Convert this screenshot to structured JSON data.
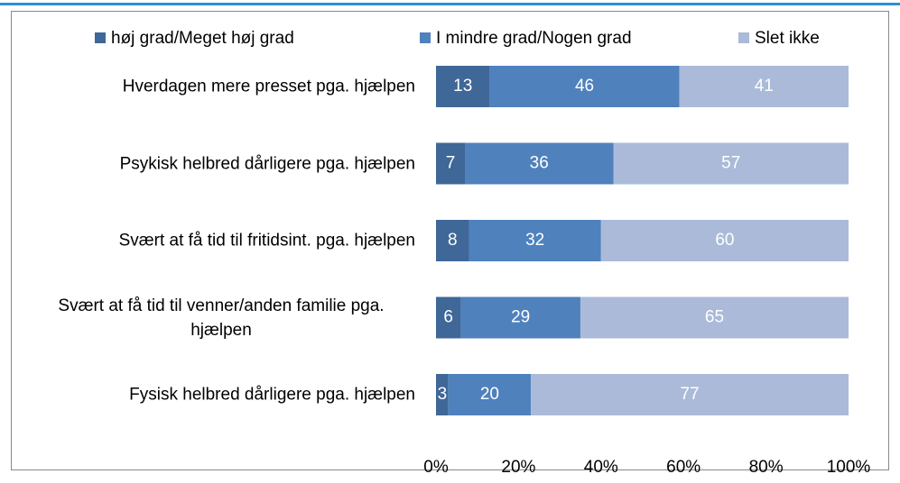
{
  "chart_data": {
    "type": "stacked-bar-horizontal",
    "categories": [
      "Hverdagen mere presset pga. hjælpen",
      "Psykisk helbred dårligere pga. hjælpen",
      "Svært at få tid til fritidsint. pga. hjælpen",
      "Svært at få tid til venner/anden familie pga. hjælpen",
      "Fysisk helbred dårligere pga. hjælpen"
    ],
    "series": [
      {
        "name": "høj grad/Meget høj grad",
        "color": "#3f6797",
        "values": [
          13,
          7,
          8,
          6,
          3
        ]
      },
      {
        "name": "I mindre grad/Nogen grad",
        "color": "#4f81bd",
        "values": [
          46,
          36,
          32,
          29,
          20
        ]
      },
      {
        "name": "Slet ikke",
        "color": "#aabad8",
        "values": [
          41,
          57,
          60,
          65,
          77
        ]
      }
    ],
    "xlim": [
      0,
      100
    ],
    "xticks": [
      {
        "value": 0,
        "label": "0%"
      },
      {
        "value": 20,
        "label": "20%"
      },
      {
        "value": 40,
        "label": "40%"
      },
      {
        "value": 60,
        "label": "60%"
      },
      {
        "value": 80,
        "label": "80%"
      },
      {
        "value": 100,
        "label": "100%"
      }
    ],
    "legend": "top"
  }
}
